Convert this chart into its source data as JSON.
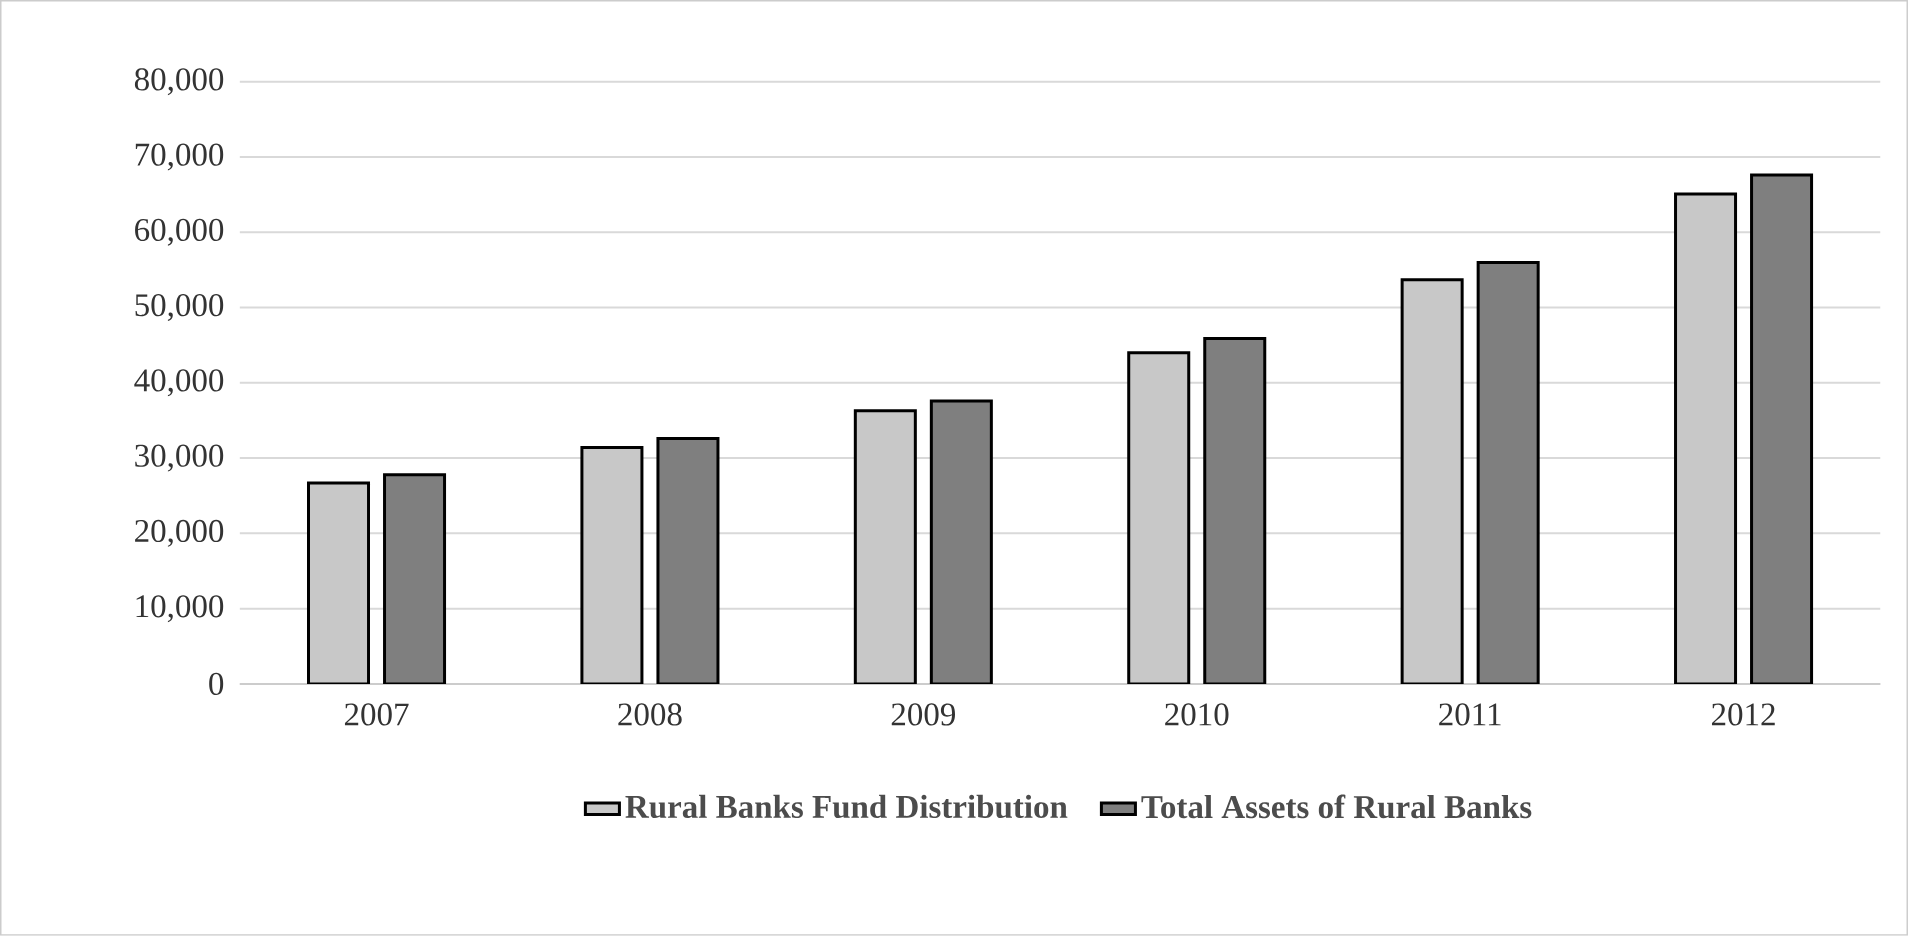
{
  "chart_data": {
    "type": "bar",
    "categories": [
      "2007",
      "2008",
      "2009",
      "2010",
      "2011",
      "2012"
    ],
    "series": [
      {
        "name": "**Rural Banks Fund Distribution**",
        "color": "#c8c8c8",
        "values": [
          26700,
          31400,
          36300,
          44000,
          53700,
          65100
        ]
      },
      {
        "name": "**Total Assets of Rural Banks**",
        "color": "#7f7f7f",
        "values": [
          27800,
          32600,
          37600,
          45900,
          56000,
          67600
        ]
      }
    ],
    "ylim": [
      0,
      80000
    ],
    "yticks": [
      {
        "value": 0,
        "label": "0"
      },
      {
        "value": 10000,
        "label": "10,000"
      },
      {
        "value": 20000,
        "label": "20,000"
      },
      {
        "value": 30000,
        "label": "30,000"
      },
      {
        "value": 40000,
        "label": "40,000"
      },
      {
        "value": 50000,
        "label": "50,000"
      },
      {
        "value": 60000,
        "label": "60,000"
      },
      {
        "value": 70000,
        "label": "70,000"
      },
      {
        "value": 80000,
        "label": "80,000"
      }
    ],
    "grid": "y",
    "legend": "bottom"
  }
}
